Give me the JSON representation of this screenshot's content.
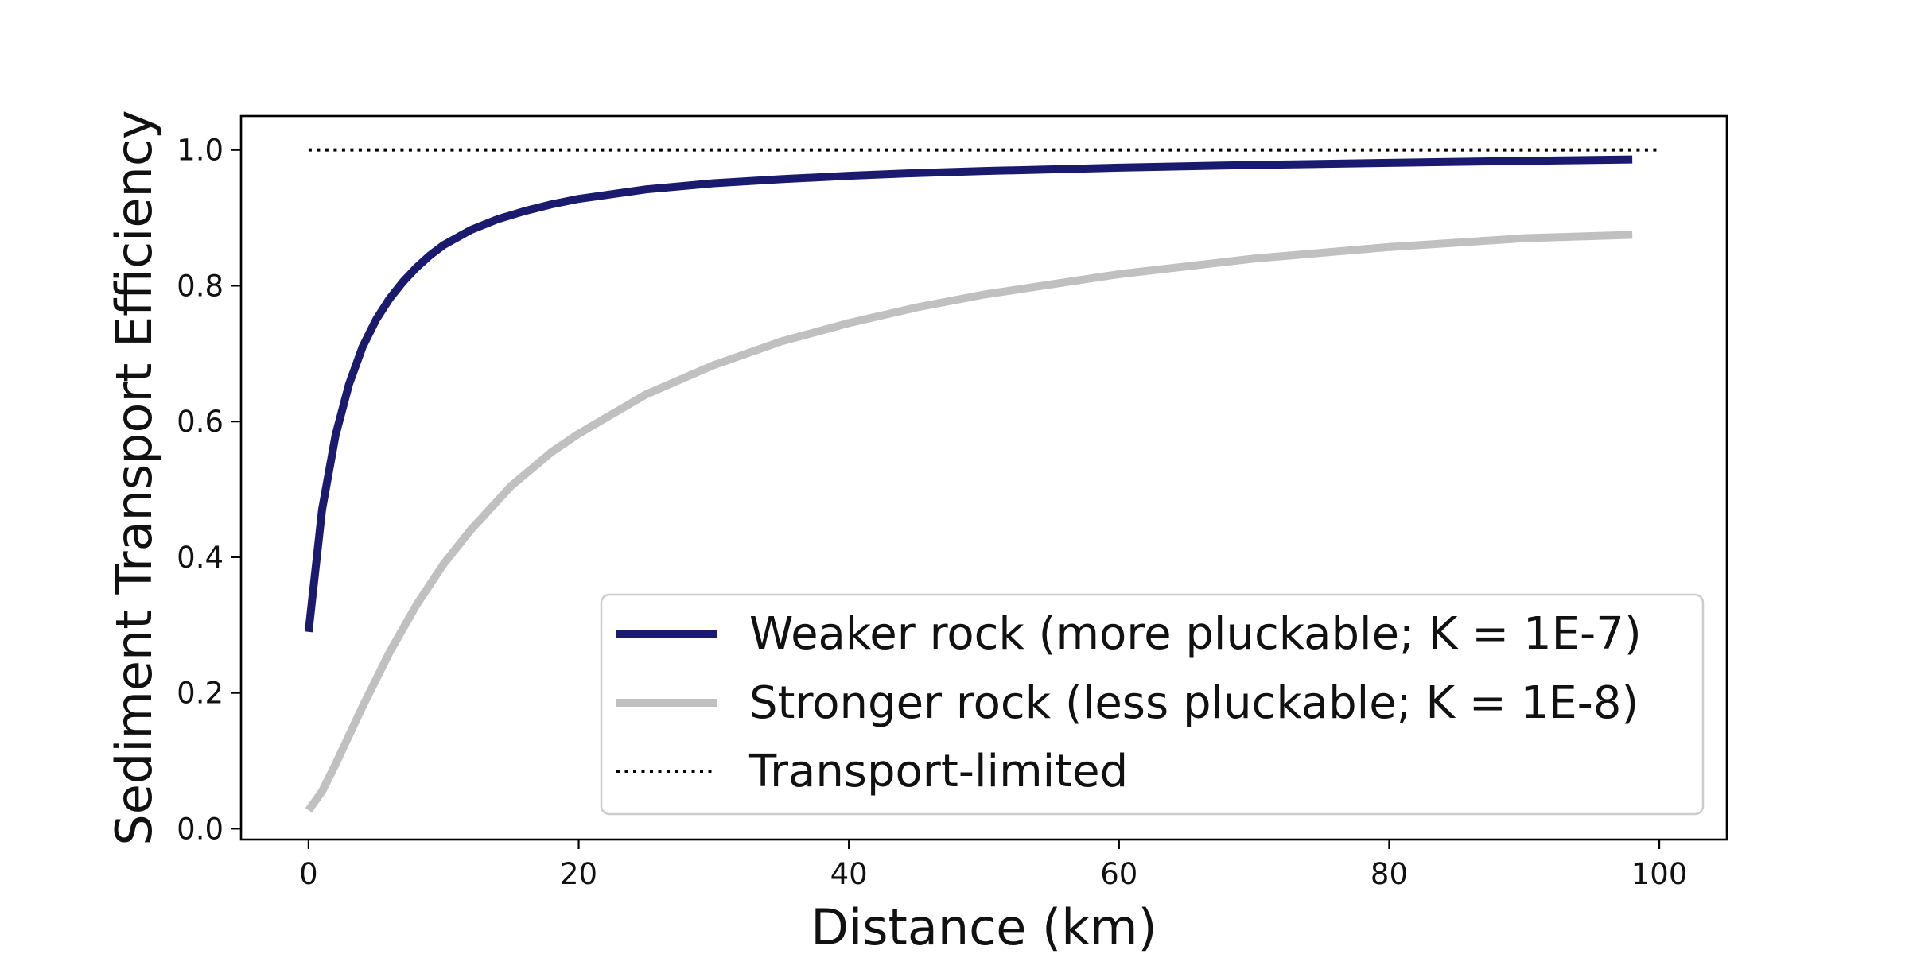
{
  "chart_data": {
    "type": "line",
    "title": "",
    "xlabel": "Distance (km)",
    "ylabel": "Sediment Transport Efficiency",
    "xlim": [
      -5,
      105
    ],
    "ylim": [
      -0.016,
      1.05
    ],
    "xticks": [
      0,
      20,
      40,
      60,
      80,
      100
    ],
    "yticks": [
      0.0,
      0.2,
      0.4,
      0.6,
      0.8,
      1.0
    ],
    "xtick_labels": [
      "0",
      "20",
      "40",
      "60",
      "80",
      "100"
    ],
    "ytick_labels": [
      "0.0",
      "0.2",
      "0.4",
      "0.6",
      "0.8",
      "1.0"
    ],
    "grid": false,
    "legend_position": "lower-right",
    "series": [
      {
        "name": "Weaker rock (more pluckable; K = 1E-7)",
        "color": "#1a1a6e",
        "style": "solid",
        "x": [
          0,
          1,
          2,
          3,
          4,
          5,
          6,
          7,
          8,
          9,
          10,
          12,
          14,
          16,
          18,
          20,
          25,
          30,
          35,
          40,
          45,
          50,
          60,
          70,
          80,
          90,
          98
        ],
        "y": [
          0.29,
          0.47,
          0.58,
          0.655,
          0.71,
          0.75,
          0.781,
          0.806,
          0.827,
          0.845,
          0.86,
          0.882,
          0.898,
          0.91,
          0.92,
          0.928,
          0.942,
          0.951,
          0.957,
          0.962,
          0.966,
          0.969,
          0.974,
          0.978,
          0.981,
          0.984,
          0.986
        ]
      },
      {
        "name": "Stronger rock (less pluckable; K = 1E-8)",
        "color": "#c0c0c0",
        "style": "solid",
        "x": [
          0,
          1,
          2,
          4,
          6,
          8,
          10,
          12,
          15,
          18,
          20,
          25,
          30,
          35,
          40,
          45,
          50,
          60,
          70,
          80,
          90,
          98
        ],
        "y": [
          0.027,
          0.055,
          0.095,
          0.18,
          0.26,
          0.33,
          0.39,
          0.44,
          0.505,
          0.555,
          0.582,
          0.64,
          0.683,
          0.718,
          0.745,
          0.768,
          0.787,
          0.817,
          0.84,
          0.857,
          0.87,
          0.875
        ]
      },
      {
        "name": "Transport-limited",
        "color": "#000000",
        "style": "dotted",
        "x": [
          0,
          100
        ],
        "y": [
          1.0,
          1.0
        ]
      }
    ]
  }
}
